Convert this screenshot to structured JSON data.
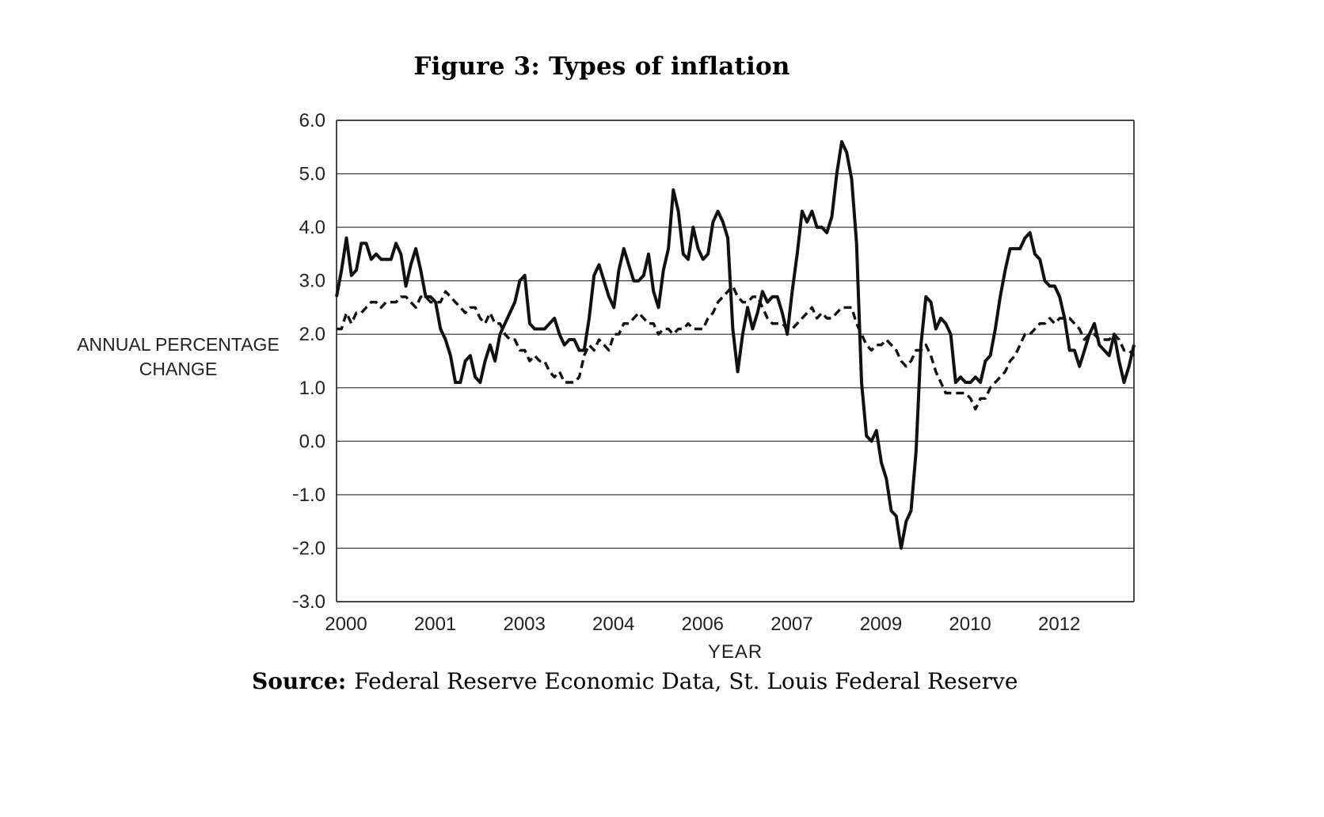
{
  "figure": {
    "title": "Figure 3: Types of inflation",
    "y_axis_label_line1": "ANNUAL PERCENTAGE",
    "y_axis_label_line2": "CHANGE",
    "x_axis_label": "YEAR",
    "source_label": "Source:",
    "source_text": "Federal Reserve Economic Data, St. Louis Federal Reserve"
  },
  "chart_data": {
    "type": "line",
    "title": "Figure 3: Types of inflation",
    "xlabel": "YEAR",
    "ylabel": "ANNUAL PERCENTAGE CHANGE",
    "ylim": [
      -3.0,
      6.0
    ],
    "y_tick_step": 1.0,
    "y_ticks": [
      "6.0",
      "5.0",
      "4.0",
      "3.0",
      "2.0",
      "1.0",
      "0.0",
      "−1.0",
      "−2.0",
      "−3.0"
    ],
    "x_unit": "month",
    "x_start_year": 2000,
    "x_tick_labels": [
      "2000",
      "2001",
      "2003",
      "2004",
      "2006",
      "2007",
      "2009",
      "2010",
      "2012"
    ],
    "x_tick_month_indices": [
      0,
      18,
      36,
      54,
      72,
      90,
      108,
      126,
      144
    ],
    "grid": "horizontal",
    "legend": "none",
    "series": [
      {
        "name": "solid line",
        "style": "solid",
        "values": [
          2.7,
          3.2,
          3.8,
          3.1,
          3.2,
          3.7,
          3.7,
          3.4,
          3.5,
          3.4,
          3.4,
          3.4,
          3.7,
          3.5,
          2.9,
          3.3,
          3.6,
          3.2,
          2.7,
          2.7,
          2.6,
          2.1,
          1.9,
          1.6,
          1.1,
          1.1,
          1.5,
          1.6,
          1.2,
          1.1,
          1.5,
          1.8,
          1.5,
          2.0,
          2.2,
          2.4,
          2.6,
          3.0,
          3.1,
          2.2,
          2.1,
          2.1,
          2.1,
          2.2,
          2.3,
          2.0,
          1.8,
          1.9,
          1.9,
          1.7,
          1.7,
          2.3,
          3.1,
          3.3,
          3.0,
          2.7,
          2.5,
          3.2,
          3.6,
          3.3,
          3.0,
          3.0,
          3.1,
          3.5,
          2.8,
          2.5,
          3.2,
          3.6,
          4.7,
          4.3,
          3.5,
          3.4,
          4.0,
          3.6,
          3.4,
          3.5,
          4.1,
          4.3,
          4.1,
          3.8,
          2.1,
          1.3,
          2.0,
          2.5,
          2.1,
          2.4,
          2.8,
          2.6,
          2.7,
          2.7,
          2.4,
          2.0,
          2.8,
          3.5,
          4.3,
          4.1,
          4.3,
          4.0,
          4.0,
          3.9,
          4.2,
          5.0,
          5.6,
          5.4,
          4.9,
          3.7,
          1.1,
          0.1,
          0.0,
          0.2,
          -0.4,
          -0.7,
          -1.3,
          -1.4,
          -2.0,
          -1.5,
          -1.3,
          -0.2,
          1.8,
          2.7,
          2.6,
          2.1,
          2.3,
          2.2,
          2.0,
          1.1,
          1.2,
          1.1,
          1.1,
          1.2,
          1.1,
          1.5,
          1.6,
          2.1,
          2.7,
          3.2,
          3.6,
          3.6,
          3.6,
          3.8,
          3.9,
          3.5,
          3.4,
          3.0,
          2.9,
          2.9,
          2.7,
          2.3,
          1.7,
          1.7,
          1.4,
          1.7,
          2.0,
          2.2,
          1.8,
          1.7,
          1.6,
          2.0,
          1.5,
          1.1,
          1.4,
          1.8
        ]
      },
      {
        "name": "dashed line",
        "style": "dashed",
        "values": [
          2.1,
          2.1,
          2.4,
          2.2,
          2.4,
          2.4,
          2.5,
          2.6,
          2.6,
          2.5,
          2.6,
          2.6,
          2.6,
          2.7,
          2.7,
          2.6,
          2.5,
          2.7,
          2.7,
          2.6,
          2.6,
          2.6,
          2.8,
          2.7,
          2.6,
          2.5,
          2.4,
          2.5,
          2.5,
          2.3,
          2.2,
          2.4,
          2.2,
          2.2,
          2.0,
          1.9,
          1.9,
          1.7,
          1.7,
          1.5,
          1.6,
          1.5,
          1.5,
          1.3,
          1.2,
          1.3,
          1.1,
          1.1,
          1.1,
          1.2,
          1.6,
          1.8,
          1.7,
          1.9,
          1.8,
          1.7,
          2.0,
          2.0,
          2.2,
          2.2,
          2.3,
          2.4,
          2.3,
          2.2,
          2.2,
          2.0,
          2.1,
          2.1,
          2.0,
          2.1,
          2.1,
          2.2,
          2.1,
          2.1,
          2.1,
          2.3,
          2.4,
          2.6,
          2.7,
          2.8,
          2.9,
          2.7,
          2.6,
          2.6,
          2.7,
          2.7,
          2.5,
          2.3,
          2.2,
          2.2,
          2.2,
          2.1,
          2.1,
          2.2,
          2.3,
          2.4,
          2.5,
          2.3,
          2.4,
          2.3,
          2.3,
          2.4,
          2.5,
          2.5,
          2.5,
          2.2,
          2.0,
          1.8,
          1.7,
          1.8,
          1.8,
          1.9,
          1.8,
          1.7,
          1.5,
          1.4,
          1.5,
          1.7,
          1.7,
          1.8,
          1.6,
          1.3,
          1.1,
          0.9,
          0.9,
          0.9,
          0.9,
          0.9,
          0.8,
          0.6,
          0.8,
          0.8,
          1.0,
          1.1,
          1.2,
          1.3,
          1.5,
          1.6,
          1.8,
          2.0,
          2.0,
          2.1,
          2.2,
          2.2,
          2.3,
          2.2,
          2.3,
          2.3,
          2.3,
          2.2,
          2.1,
          1.9,
          2.0,
          2.0,
          1.9,
          1.9,
          1.9,
          2.0,
          1.9,
          1.7,
          1.7,
          1.6
        ]
      }
    ]
  }
}
